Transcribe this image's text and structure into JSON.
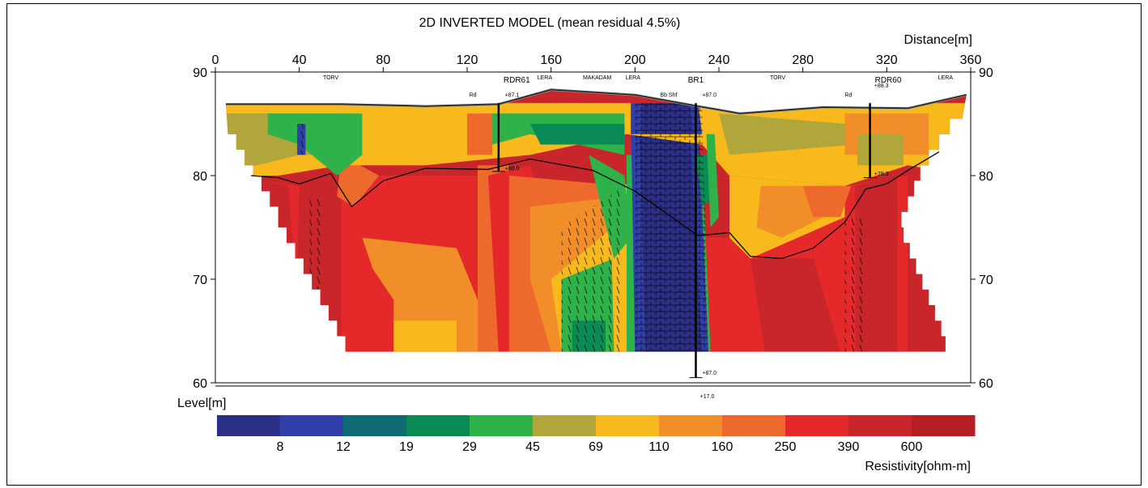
{
  "chart_data": {
    "type": "heatmap",
    "title": "2D INVERTED MODEL (mean residual 4.5%)",
    "xlabel": "Distance[m]",
    "ylabel": "Level[m]",
    "xlim": [
      0,
      360
    ],
    "ylim": [
      60,
      90
    ],
    "x_ticks": [
      "0",
      "40",
      "80",
      "120",
      "160",
      "200",
      "240",
      "280",
      "320",
      "360"
    ],
    "y_ticks": [
      "90",
      "80",
      "70",
      "60"
    ],
    "grid": false,
    "colorbar": {
      "label": "Resistivity[ohm-m]",
      "tick_labels": [
        "8",
        "12",
        "19",
        "29",
        "45",
        "69",
        "110",
        "160",
        "250",
        "390",
        "600"
      ],
      "colors": [
        "#2b2f86",
        "#3140a8",
        "#0f6b73",
        "#0a8a55",
        "#2fb24a",
        "#b0a63c",
        "#f7b91b",
        "#f28e2a",
        "#ee6a2c",
        "#e5282a",
        "#c8262a",
        "#b51f24"
      ]
    },
    "surface": [
      [
        5,
        86.9
      ],
      [
        60,
        86.9
      ],
      [
        100,
        86.7
      ],
      [
        135,
        86.9
      ],
      [
        160,
        88.3
      ],
      [
        200,
        87.8
      ],
      [
        230,
        86.7
      ],
      [
        250,
        86.0
      ],
      [
        290,
        86.6
      ],
      [
        330,
        86.5
      ],
      [
        358,
        87.8
      ]
    ],
    "interface_line": [
      [
        17,
        80.0
      ],
      [
        30,
        79.8
      ],
      [
        40,
        79.2
      ],
      [
        55,
        80.2
      ],
      [
        65,
        77.0
      ],
      [
        80,
        79.5
      ],
      [
        100,
        80.7
      ],
      [
        130,
        80.6
      ],
      [
        150,
        81.6
      ],
      [
        180,
        80.5
      ],
      [
        200,
        78.5
      ],
      [
        230,
        74.2
      ],
      [
        245,
        74.5
      ],
      [
        255,
        72.2
      ],
      [
        270,
        72.0
      ],
      [
        285,
        73.0
      ],
      [
        300,
        75.5
      ],
      [
        310,
        78.7
      ],
      [
        320,
        79.2
      ],
      [
        330,
        80.5
      ],
      [
        345,
        82.3
      ]
    ],
    "boreholes": [
      {
        "name": "RDR61",
        "x": 135,
        "top": 87.0,
        "bottom": 80.4
      },
      {
        "name": "BR1",
        "x": 229,
        "top": 87.0,
        "bottom": 60.5
      },
      {
        "name": "RDR60",
        "x": 312,
        "top": 87.0,
        "bottom": 79.8
      }
    ],
    "geology_labels": [
      {
        "text": "TORV",
        "x": 55
      },
      {
        "text": "LERA",
        "x": 157
      },
      {
        "text": "MAKADAM",
        "x": 182
      },
      {
        "text": "LERA",
        "x": 199
      },
      {
        "text": "TORV",
        "x": 268
      },
      {
        "text": "LERA",
        "x": 348
      }
    ],
    "annotations": [
      "Rd",
      "+87.1",
      "+80.0",
      "Bb Shf",
      "+87.0",
      "+87.0",
      "Rd",
      "+88.3",
      "+79.3",
      "+17.0"
    ]
  }
}
